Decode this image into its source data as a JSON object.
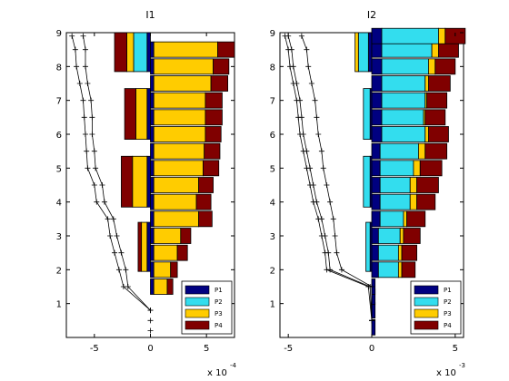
{
  "chart_data": [
    {
      "type": "bar",
      "title": "I1",
      "exponent_base": "x 10",
      "exponent_power": "-4",
      "xlim": [
        -7.5,
        7.5
      ],
      "ylim": [
        0,
        9
      ],
      "xticks": [
        -5,
        0,
        5
      ],
      "yticks": [
        1,
        2,
        3,
        4,
        5,
        6,
        7,
        8,
        9
      ],
      "legend": {
        "position": "bottom-right",
        "entries": [
          "P1",
          "P2",
          "P3",
          "P4"
        ]
      },
      "colors": [
        "#000080",
        "#33ddee",
        "#ffcc00",
        "#800000"
      ],
      "right_bars": [
        {
          "y": 1.5,
          "values": [
            0.3,
            0.0,
            1.2,
            0.5
          ]
        },
        {
          "y": 2.0,
          "values": [
            0.3,
            0.0,
            1.5,
            0.6
          ]
        },
        {
          "y": 2.5,
          "values": [
            0.3,
            0.0,
            2.1,
            0.9
          ]
        },
        {
          "y": 3.0,
          "values": [
            0.3,
            0.0,
            2.4,
            0.9
          ]
        },
        {
          "y": 3.5,
          "values": [
            0.3,
            0.0,
            4.0,
            1.2
          ]
        },
        {
          "y": 4.0,
          "values": [
            0.3,
            0.0,
            3.8,
            1.3
          ]
        },
        {
          "y": 4.5,
          "values": [
            0.3,
            0.0,
            4.0,
            1.3
          ]
        },
        {
          "y": 5.0,
          "values": [
            0.3,
            0.0,
            4.4,
            1.4
          ]
        },
        {
          "y": 5.5,
          "values": [
            0.3,
            0.0,
            4.5,
            1.4
          ]
        },
        {
          "y": 6.0,
          "values": [
            0.3,
            0.0,
            4.6,
            1.4
          ]
        },
        {
          "y": 6.5,
          "values": [
            0.3,
            0.0,
            4.6,
            1.5
          ]
        },
        {
          "y": 7.0,
          "values": [
            0.3,
            0.0,
            4.6,
            1.5
          ]
        },
        {
          "y": 7.5,
          "values": [
            0.3,
            0.0,
            5.1,
            1.5
          ]
        },
        {
          "y": 8.0,
          "values": [
            0.3,
            0.0,
            5.3,
            1.4
          ]
        },
        {
          "y": 8.5,
          "values": [
            0.3,
            0.0,
            5.7,
            1.5
          ]
        }
      ],
      "left_bars": [
        {
          "y0": 1.95,
          "y1": 3.4,
          "values": [
            -0.3,
            0.0,
            -0.5,
            -0.3
          ]
        },
        {
          "y0": 3.85,
          "y1": 5.35,
          "values": [
            -0.3,
            0.0,
            -1.3,
            -1.0
          ]
        },
        {
          "y0": 5.85,
          "y1": 7.35,
          "values": [
            -0.3,
            0.0,
            -1.0,
            -1.0
          ]
        },
        {
          "y0": 7.85,
          "y1": 9.0,
          "values": [
            -0.3,
            -1.2,
            -0.6,
            -1.1
          ]
        }
      ],
      "lines": [
        {
          "points": [
            [
              -6.0,
              8.9
            ],
            [
              -5.8,
              8.5
            ],
            [
              -5.8,
              8.0
            ],
            [
              -5.6,
              7.5
            ],
            [
              -5.3,
              7.0
            ],
            [
              -5.2,
              6.5
            ],
            [
              -5.2,
              6.0
            ],
            [
              -5.0,
              5.5
            ],
            [
              -4.9,
              5.0
            ],
            [
              -4.3,
              4.5
            ],
            [
              -4.1,
              4.0
            ],
            [
              -3.3,
              3.5
            ],
            [
              -3.0,
              3.0
            ],
            [
              -2.6,
              2.5
            ],
            [
              -2.2,
              2.0
            ],
            [
              -2.0,
              1.5
            ],
            [
              0.0,
              0.8
            ]
          ]
        },
        {
          "points": [
            [
              -7.0,
              8.9
            ],
            [
              -6.7,
              8.5
            ],
            [
              -6.6,
              8.0
            ],
            [
              -6.3,
              7.5
            ],
            [
              -6.0,
              7.0
            ],
            [
              -5.9,
              6.5
            ],
            [
              -5.8,
              6.0
            ],
            [
              -5.7,
              5.5
            ],
            [
              -5.6,
              5.0
            ],
            [
              -5.0,
              4.5
            ],
            [
              -4.8,
              4.0
            ],
            [
              -3.8,
              3.5
            ],
            [
              -3.6,
              3.0
            ],
            [
              -3.2,
              2.5
            ],
            [
              -2.8,
              2.0
            ],
            [
              -2.4,
              1.5
            ],
            [
              0.0,
              0.8
            ]
          ]
        }
      ],
      "zero_markers": [
        0.2,
        0.5,
        0.8
      ]
    },
    {
      "type": "bar",
      "title": "I2",
      "exponent_base": "x 10",
      "exponent_power": "-3",
      "xlim": [
        -5.5,
        5.5
      ],
      "ylim": [
        0,
        9
      ],
      "xticks": [
        -5,
        0,
        5
      ],
      "yticks": [
        1,
        2,
        3,
        4,
        5,
        6,
        7,
        8,
        9
      ],
      "legend": {
        "position": "bottom-right",
        "entries": [
          "P1",
          "P2",
          "P3",
          "P4"
        ]
      },
      "colors": [
        "#000080",
        "#33ddee",
        "#ffcc00",
        "#800000"
      ],
      "right_bars": [
        {
          "y": 0.3,
          "values": [
            0.2,
            0.0,
            0.0,
            0.0
          ]
        },
        {
          "y": 0.8,
          "values": [
            0.2,
            0.0,
            0.0,
            0.0
          ]
        },
        {
          "y": 1.2,
          "values": [
            0.2,
            0.0,
            0.0,
            0.0
          ]
        },
        {
          "y": 1.5,
          "values": [
            0.2,
            0.0,
            0.0,
            0.0
          ]
        },
        {
          "y": 2.0,
          "values": [
            0.4,
            1.2,
            0.2,
            0.8
          ]
        },
        {
          "y": 2.5,
          "values": [
            0.4,
            1.2,
            0.2,
            0.9
          ]
        },
        {
          "y": 3.0,
          "values": [
            0.4,
            1.3,
            0.2,
            1.0
          ]
        },
        {
          "y": 3.5,
          "values": [
            0.5,
            1.4,
            0.2,
            1.1
          ]
        },
        {
          "y": 4.0,
          "values": [
            0.5,
            1.8,
            0.4,
            1.1
          ]
        },
        {
          "y": 4.5,
          "values": [
            0.5,
            1.8,
            0.4,
            1.3
          ]
        },
        {
          "y": 5.0,
          "values": [
            0.5,
            2.0,
            0.4,
            1.3
          ]
        },
        {
          "y": 5.5,
          "values": [
            0.5,
            2.3,
            0.4,
            1.3
          ]
        },
        {
          "y": 6.0,
          "values": [
            0.6,
            2.6,
            0.2,
            1.2
          ]
        },
        {
          "y": 6.5,
          "values": [
            0.6,
            2.5,
            0.1,
            1.2
          ]
        },
        {
          "y": 7.0,
          "values": [
            0.6,
            2.6,
            0.1,
            1.2
          ]
        },
        {
          "y": 7.5,
          "values": [
            0.6,
            2.6,
            0.2,
            1.3
          ]
        },
        {
          "y": 8.0,
          "values": [
            0.6,
            2.8,
            0.4,
            1.2
          ]
        },
        {
          "y": 8.5,
          "values": [
            0.6,
            3.0,
            0.4,
            1.2
          ]
        },
        {
          "y": 8.9,
          "values": [
            0.6,
            3.4,
            0.4,
            1.2
          ]
        }
      ],
      "left_bars": [
        {
          "y0": 1.95,
          "y1": 3.4,
          "values": [
            -0.1,
            -0.25,
            0.0,
            0.0
          ]
        },
        {
          "y0": 3.85,
          "y1": 5.35,
          "values": [
            -0.1,
            -0.4,
            0.0,
            0.0
          ]
        },
        {
          "y0": 5.85,
          "y1": 7.35,
          "values": [
            -0.1,
            -0.4,
            0.0,
            0.0
          ]
        },
        {
          "y0": 7.85,
          "y1": 9.0,
          "values": [
            -0.2,
            -0.6,
            -0.2,
            0.0
          ]
        }
      ],
      "lines": [
        {
          "points": [
            [
              -4.2,
              8.9
            ],
            [
              -3.9,
              8.5
            ],
            [
              -3.8,
              8.0
            ],
            [
              -3.6,
              7.5
            ],
            [
              -3.4,
              7.0
            ],
            [
              -3.3,
              6.5
            ],
            [
              -3.2,
              6.0
            ],
            [
              -3.0,
              5.5
            ],
            [
              -2.9,
              5.0
            ],
            [
              -2.7,
              4.5
            ],
            [
              -2.5,
              4.0
            ],
            [
              -2.3,
              3.5
            ],
            [
              -2.2,
              3.0
            ],
            [
              -2.1,
              2.5
            ],
            [
              -1.8,
              2.0
            ],
            [
              0.0,
              1.5
            ],
            [
              0.0,
              0.5
            ]
          ]
        },
        {
          "points": [
            [
              -5.0,
              8.9
            ],
            [
              -4.8,
              8.5
            ],
            [
              -4.7,
              8.0
            ],
            [
              -4.5,
              7.5
            ],
            [
              -4.3,
              7.0
            ],
            [
              -4.2,
              6.5
            ],
            [
              -4.1,
              6.0
            ],
            [
              -3.9,
              5.5
            ],
            [
              -3.7,
              5.0
            ],
            [
              -3.5,
              4.5
            ],
            [
              -3.3,
              4.0
            ],
            [
              -3.0,
              3.5
            ],
            [
              -2.8,
              3.0
            ],
            [
              -2.6,
              2.5
            ],
            [
              -2.5,
              2.0
            ],
            [
              -0.1,
              1.5
            ],
            [
              0.0,
              0.5
            ]
          ]
        },
        {
          "points": [
            [
              -5.2,
              8.9
            ],
            [
              -5.0,
              8.5
            ],
            [
              -4.9,
              8.0
            ],
            [
              -4.7,
              7.5
            ],
            [
              -4.5,
              7.0
            ],
            [
              -4.4,
              6.5
            ],
            [
              -4.3,
              6.0
            ],
            [
              -4.1,
              5.5
            ],
            [
              -3.9,
              5.0
            ],
            [
              -3.7,
              4.5
            ],
            [
              -3.5,
              4.0
            ],
            [
              -3.2,
              3.5
            ],
            [
              -3.0,
              3.0
            ],
            [
              -2.8,
              2.5
            ],
            [
              -2.7,
              2.0
            ],
            [
              -0.2,
              1.5
            ],
            [
              0.0,
              0.5
            ]
          ]
        }
      ],
      "zero_markers": []
    }
  ]
}
